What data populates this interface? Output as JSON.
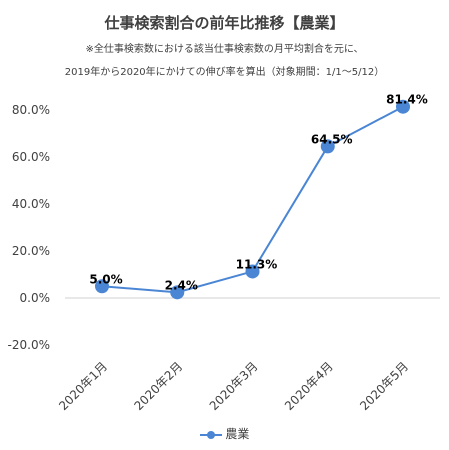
{
  "chart_data": {
    "type": "line",
    "title": "仕事検索割合の前年比推移【農業】",
    "subtitle_lines": [
      "※全仕事検索数における該当仕事検索数の月平均割合を元に、",
      "2019年から2020年にかけての伸び率を算出（対象期間：1/1〜5/12）"
    ],
    "categories": [
      "2020年1月",
      "2020年2月",
      "2020年3月",
      "2020年4月",
      "2020年5月"
    ],
    "series": [
      {
        "name": "農業",
        "values": [
          5.0,
          2.4,
          11.3,
          64.5,
          81.4
        ],
        "color": "#4a86d4"
      }
    ],
    "data_labels": [
      "5.0%",
      "2.4%",
      "11.3%",
      "64.5%",
      "81.4%"
    ],
    "y_ticks": [
      "-20.0%",
      "0.0%",
      "20.0%",
      "40.0%",
      "60.0%",
      "80.0%"
    ],
    "y_tick_values": [
      -20,
      0,
      20,
      40,
      60,
      80
    ],
    "ylim": [
      -20,
      80
    ],
    "grid": false,
    "legend_position": "bottom",
    "xlabel": "",
    "ylabel": ""
  }
}
